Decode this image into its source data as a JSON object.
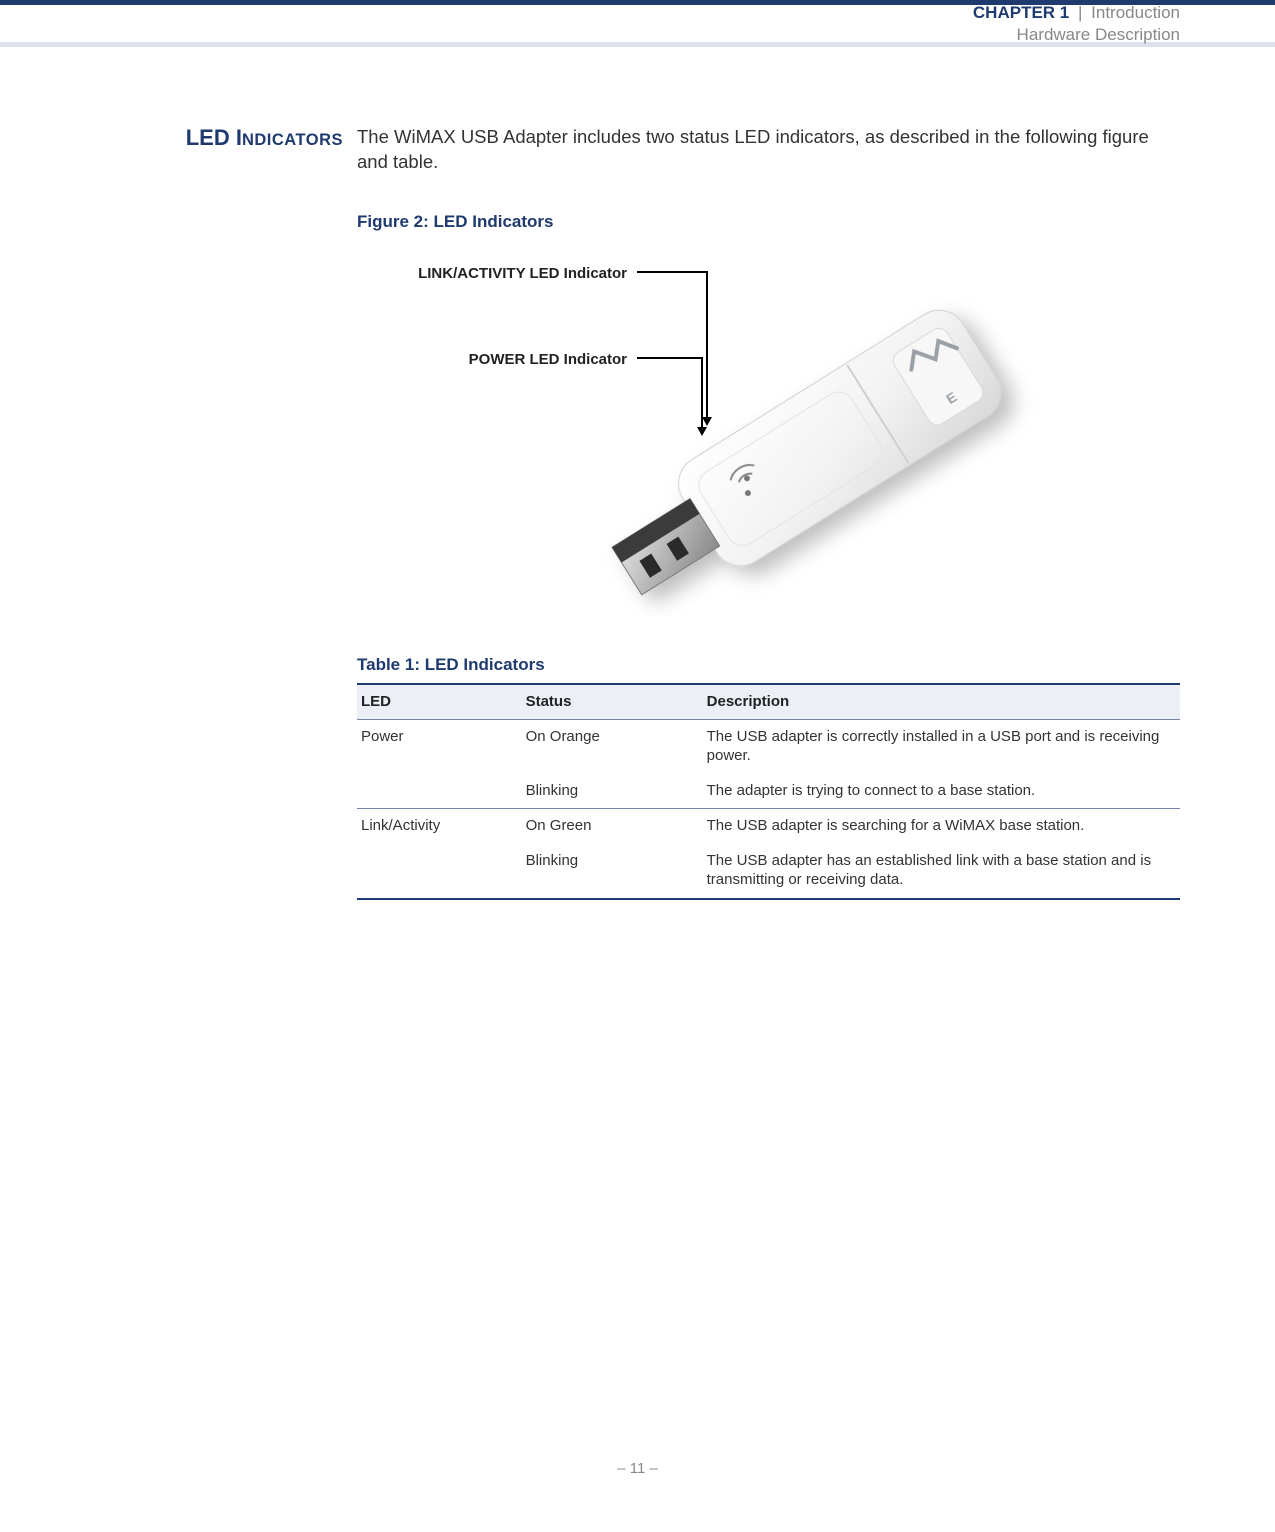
{
  "header": {
    "chapter_label": "CHAPTER 1",
    "separator": "|",
    "chapter_name": "Introduction",
    "subheader": "Hardware Description"
  },
  "section": {
    "heading_big1": "LED I",
    "heading_rest": "NDICATORS",
    "intro": "The WiMAX USB Adapter includes two status LED indicators, as described in the following figure and table."
  },
  "figure": {
    "caption": "Figure 2:  LED Indicators",
    "callout1": "LINK/ACTIVITY LED Indicator",
    "callout2": "POWER LED Indicator"
  },
  "table": {
    "caption": "Table 1: LED Indicators",
    "columns": [
      "LED",
      "Status",
      "Description"
    ],
    "rows": [
      {
        "led": "Power",
        "status": "On Orange",
        "desc": "The USB adapter is correctly installed in a USB port and is receiving power.",
        "group_end": false
      },
      {
        "led": "",
        "status": "Blinking",
        "desc": "The adapter is trying to connect to a base station.",
        "group_end": true
      },
      {
        "led": "Link/Activity",
        "status": "On Green",
        "desc": "The USB adapter is searching for a WiMAX base station.",
        "group_end": false
      },
      {
        "led": "",
        "status": "Blinking",
        "desc": "The USB adapter has an established link with a base station and is transmitting or receiving data.",
        "group_end": true
      }
    ]
  },
  "footer": {
    "page": "–  11  –"
  },
  "colors": {
    "brand": "#1f3a6e",
    "muted": "#888888",
    "row_header_bg": "#eceff6",
    "rule": "#7786a8"
  }
}
